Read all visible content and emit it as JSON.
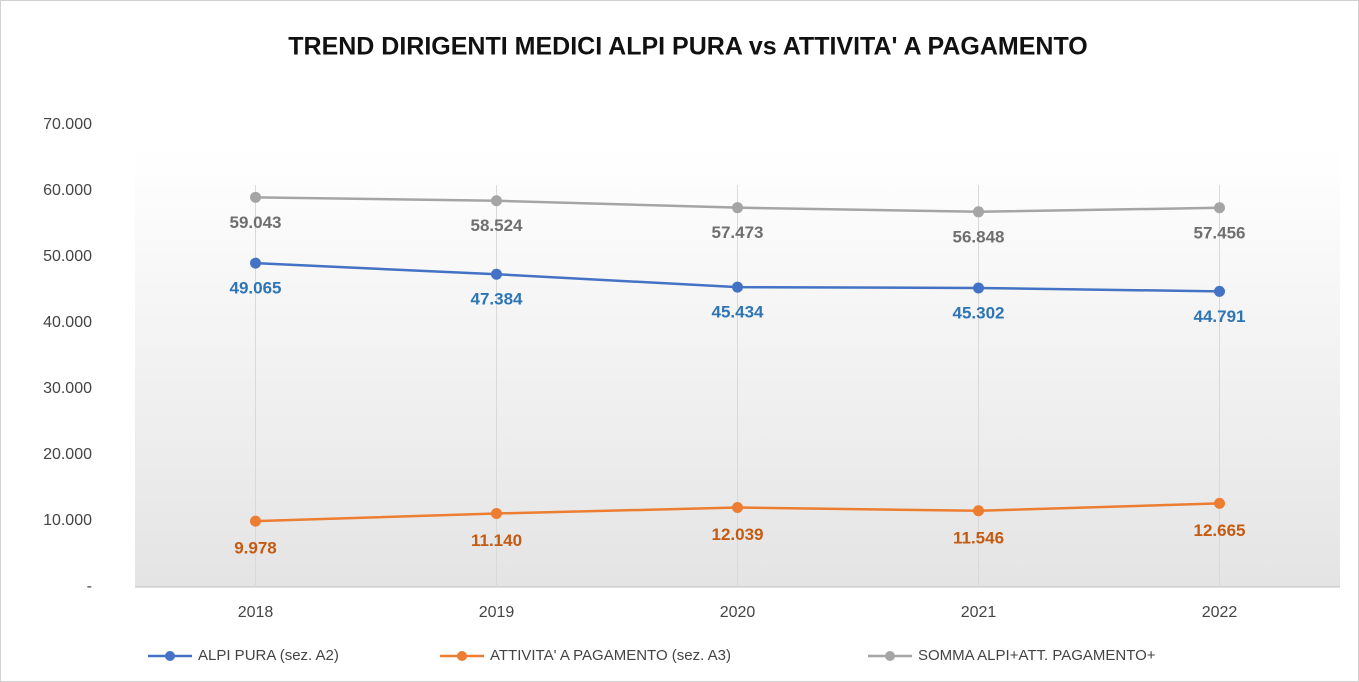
{
  "chart_data": {
    "type": "line",
    "title": "TREND DIRIGENTI MEDICI ALPI PURA vs ATTIVITA' A PAGAMENTO",
    "categories": [
      "2018",
      "2019",
      "2020",
      "2021",
      "2022"
    ],
    "series": [
      {
        "name": "ALPI PURA (sez. A2)",
        "color": "#4472c4",
        "label_color": "#2e75b6",
        "values": [
          49065,
          47384,
          45434,
          45302,
          44791
        ],
        "value_labels": [
          "49.065",
          "47.384",
          "45.434",
          "45.302",
          "44.791"
        ]
      },
      {
        "name": "ATTIVITA' A PAGAMENTO (sez. A3)",
        "color": "#ed7d31",
        "label_color": "#c55a11",
        "values": [
          9978,
          11140,
          12039,
          11546,
          12665
        ],
        "value_labels": [
          "9.978",
          "11.140",
          "12.039",
          "11.546",
          "12.665"
        ]
      },
      {
        "name": "SOMMA ALPI+ATT. PAGAMENTO+",
        "color": "#a5a5a5",
        "label_color": "#6f6f6f",
        "values": [
          59043,
          58524,
          57473,
          56848,
          57456
        ],
        "value_labels": [
          "59.043",
          "58.524",
          "57.473",
          "56.848",
          "57.456"
        ]
      }
    ],
    "ylim": [
      0,
      70000
    ],
    "yticks": [
      {
        "value": 0,
        "label": "-"
      },
      {
        "value": 10000,
        "label": "10.000"
      },
      {
        "value": 20000,
        "label": "20.000"
      },
      {
        "value": 30000,
        "label": "30.000"
      },
      {
        "value": 40000,
        "label": "40.000"
      },
      {
        "value": 50000,
        "label": "50.000"
      },
      {
        "value": 60000,
        "label": "60.000"
      },
      {
        "value": 70000,
        "label": "70.000"
      }
    ],
    "legend": "bottom"
  }
}
